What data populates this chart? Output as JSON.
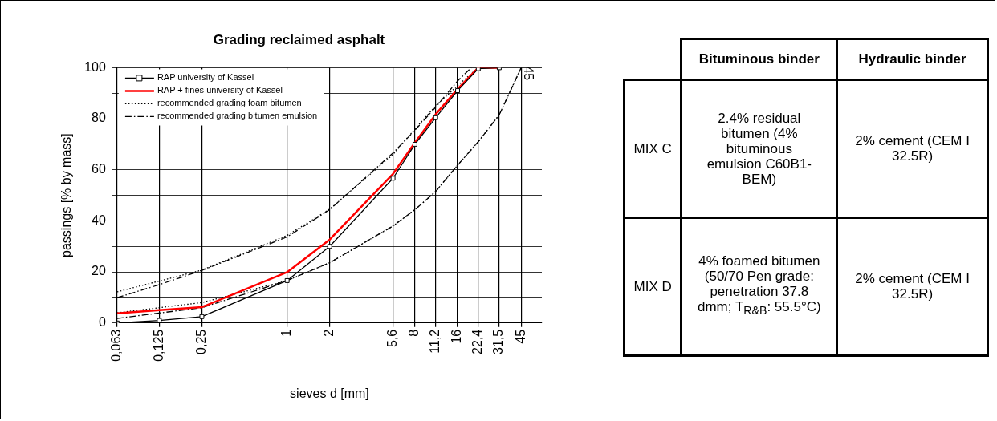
{
  "chart_data": [
    {
      "type": "line",
      "title": "Grading reclaimed asphalt",
      "xlabel": "sieves d [mm]",
      "ylabel": "passings [% by mass]",
      "log": "x",
      "grid": true,
      "legend": "top left",
      "xlim": [
        0.063,
        63
      ],
      "xticks": [
        {
          "value": 0.063,
          "label": "0,063"
        },
        {
          "value": 0.125,
          "label": "0,125"
        },
        {
          "value": 0.25,
          "label": "0,25"
        },
        1,
        2,
        {
          "value": 5.6,
          "label": "5,6"
        },
        8,
        {
          "value": 11.2,
          "label": "11,2"
        },
        16,
        {
          "value": 22.4,
          "label": "22,4"
        },
        {
          "value": 31.5,
          "label": "31,5"
        },
        45
      ],
      "ylim": [
        0,
        100
      ],
      "yticks": [
        0,
        {
          "value": 10,
          "label": null
        },
        20,
        {
          "value": 30,
          "label": null
        },
        40,
        {
          "value": 50,
          "label": null
        },
        60,
        {
          "value": 70,
          "label": null
        },
        80,
        {
          "value": 90,
          "label": null
        },
        100
      ],
      "series": [
        {
          "name": "RAP university of Kassel",
          "color": "#000000",
          "marker": "square",
          "line_style": "solid",
          "x": [
            0.063,
            0.125,
            0.25,
            1,
            2,
            5.6,
            8,
            11.2,
            16,
            22.4,
            31.5
          ],
          "values": [
            0,
            1,
            2.5,
            16.6,
            30,
            56.7,
            70,
            80.4,
            91,
            99.6,
            100
          ]
        },
        {
          "name": "RAP + fines university of Kassel",
          "color": "#ff0000",
          "marker": "none",
          "line_style": "solid",
          "x": [
            0.063,
            0.125,
            0.25,
            1,
            2,
            5.6,
            8,
            11.2,
            16,
            22.4,
            31.5
          ],
          "values": [
            3.8,
            5,
            6.2,
            19.9,
            32.7,
            58.4,
            70.7,
            81.7,
            91.6,
            100,
            100
          ]
        },
        {
          "name": "recommended grading foam bitumen",
          "color": "#000000",
          "marker": "none",
          "line_style": "dotted",
          "x": [
            0.063,
            0.25,
            1,
            2,
            5.6,
            8,
            11.2,
            16,
            22.4
          ],
          "values": [
            12.2,
            20.7,
            34.3,
            44.6,
            66,
            76,
            85,
            93,
            100
          ]
        },
        {
          "color": "#000000",
          "marker": "none",
          "line_style": "dotted",
          "x": [
            0.063,
            0.25,
            1,
            2,
            5.6,
            8,
            11.2,
            16,
            22.4,
            31.5,
            45
          ],
          "values": [
            4,
            8,
            16.6,
            23.6,
            38,
            44.4,
            51.5,
            61.8,
            71,
            81.5,
            100
          ]
        },
        {
          "name": "recommended grading bitumen emulsion",
          "color": "#000000",
          "marker": "none",
          "line_style": "dashed",
          "x": [
            0.063,
            0.125,
            0.25,
            1,
            2,
            5.6,
            8,
            11.2,
            16,
            20
          ],
          "values": [
            9.9,
            15,
            20.6,
            33.7,
            44.4,
            66.6,
            75.5,
            84.5,
            94.8,
            100
          ]
        },
        {
          "color": "#000000",
          "marker": "none",
          "line_style": "dashed",
          "x": [
            0.063,
            0.25,
            1,
            2,
            5.6,
            8,
            11.2,
            16,
            22.4,
            31.5,
            45
          ],
          "values": [
            1.8,
            6,
            16.6,
            23.6,
            38,
            44.4,
            51.5,
            61.8,
            71,
            81.5,
            100
          ]
        }
      ],
      "annotations": [
        {
          "text": "45",
          "x": 45,
          "y": 100
        }
      ]
    },
    {
      "type": "other",
      "annotations": [
        "Bituminous binder",
        "Hydraulic binder",
        "MIX C",
        "2.4% residual bitumen (4% bituminous emulsion C60B1-BEM)",
        "2% cement (CEM I 32.5R)",
        "MIX D",
        "4% foamed bitumen (50/70 Pen grade: penetration 37.8 dmm; T$_{R&B}$: 55.5°C)",
        "2% cement (CEM I 32.5R)"
      ]
    }
  ]
}
